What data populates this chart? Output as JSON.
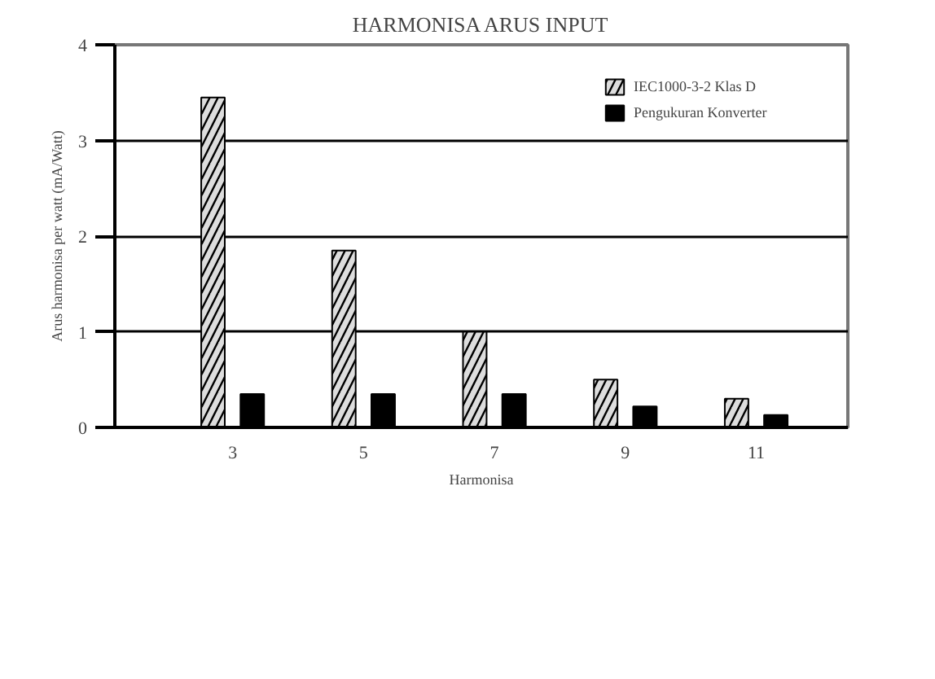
{
  "chart_data": {
    "type": "bar",
    "title": "HARMONISA ARUS INPUT",
    "xlabel": "Harmonisa",
    "ylabel": "Arus harmonisa per watt (mA/Watt)",
    "categories": [
      "3",
      "5",
      "7",
      "9",
      "11"
    ],
    "series": [
      {
        "name": "IEC1000-3-2 Klas D",
        "color": "#dddddd",
        "values": [
          3.45,
          1.85,
          1.0,
          0.5,
          0.3
        ]
      },
      {
        "name": "Pengukuran Konverter",
        "color": "#000000",
        "values": [
          0.35,
          0.35,
          0.35,
          0.22,
          0.13
        ]
      }
    ],
    "ylim": [
      0,
      4
    ],
    "yticks": [
      0,
      1,
      2,
      3,
      4
    ],
    "grid": "y",
    "legend": "top right"
  }
}
